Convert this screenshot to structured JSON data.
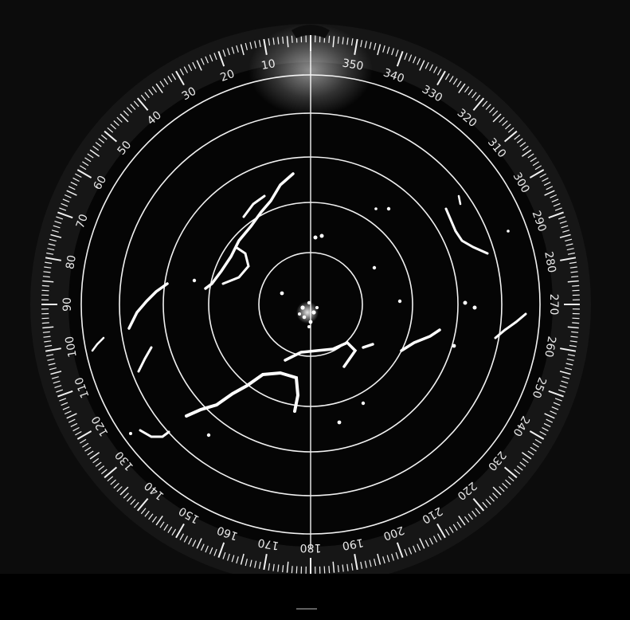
{
  "scene": {
    "subject": "radar-ppi-display",
    "colors": {
      "background": "#0c0c0c",
      "scope_face": "#050505",
      "bezel": "#161616",
      "markings": "#f2f2f2",
      "returns": "#ffffff",
      "bottom_strip": "#000000"
    }
  },
  "bezel": {
    "labels": [
      {
        "bearing": 10,
        "text": "10"
      },
      {
        "bearing": 20,
        "text": "20"
      },
      {
        "bearing": 30,
        "text": "30"
      },
      {
        "bearing": 40,
        "text": "40"
      },
      {
        "bearing": 50,
        "text": "50"
      },
      {
        "bearing": 60,
        "text": "60"
      },
      {
        "bearing": 70,
        "text": "70"
      },
      {
        "bearing": 80,
        "text": "80"
      },
      {
        "bearing": 90,
        "text": "90"
      },
      {
        "bearing": 100,
        "text": "100"
      },
      {
        "bearing": 110,
        "text": "110"
      },
      {
        "bearing": 120,
        "text": "120"
      },
      {
        "bearing": 130,
        "text": "130"
      },
      {
        "bearing": 140,
        "text": "140"
      },
      {
        "bearing": 150,
        "text": "150"
      },
      {
        "bearing": 160,
        "text": "160"
      },
      {
        "bearing": 170,
        "text": "170"
      },
      {
        "bearing": 180,
        "text": "180"
      },
      {
        "bearing": 190,
        "text": "190"
      },
      {
        "bearing": 200,
        "text": "200"
      },
      {
        "bearing": 210,
        "text": "210"
      },
      {
        "bearing": 220,
        "text": "220"
      },
      {
        "bearing": 230,
        "text": "230"
      },
      {
        "bearing": 240,
        "text": "240"
      },
      {
        "bearing": 250,
        "text": "250"
      },
      {
        "bearing": 260,
        "text": "260"
      },
      {
        "bearing": 270,
        "text": "270"
      },
      {
        "bearing": 280,
        "text": "280"
      },
      {
        "bearing": 290,
        "text": "290"
      },
      {
        "bearing": 300,
        "text": "300"
      },
      {
        "bearing": 310,
        "text": "310"
      },
      {
        "bearing": 320,
        "text": "320"
      },
      {
        "bearing": 330,
        "text": "330"
      },
      {
        "bearing": 340,
        "text": "340"
      },
      {
        "bearing": 350,
        "text": "350"
      }
    ]
  }
}
